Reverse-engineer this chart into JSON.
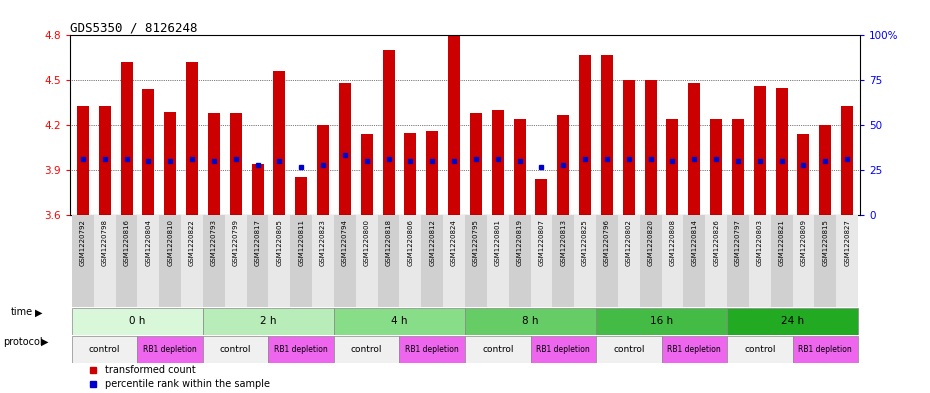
{
  "title": "GDS5350 / 8126248",
  "samples": [
    "GSM1220792",
    "GSM1220798",
    "GSM1220816",
    "GSM1220804",
    "GSM1220810",
    "GSM1220822",
    "GSM1220793",
    "GSM1220799",
    "GSM1220817",
    "GSM1220805",
    "GSM1220811",
    "GSM1220823",
    "GSM1220794",
    "GSM1220800",
    "GSM1220818",
    "GSM1220806",
    "GSM1220812",
    "GSM1220824",
    "GSM1220795",
    "GSM1220801",
    "GSM1220819",
    "GSM1220807",
    "GSM1220813",
    "GSM1220825",
    "GSM1220796",
    "GSM1220802",
    "GSM1220820",
    "GSM1220808",
    "GSM1220814",
    "GSM1220826",
    "GSM1220797",
    "GSM1220803",
    "GSM1220821",
    "GSM1220809",
    "GSM1220815",
    "GSM1220827"
  ],
  "bar_values": [
    4.33,
    4.33,
    4.62,
    4.44,
    4.29,
    4.62,
    4.28,
    4.28,
    3.94,
    4.56,
    3.85,
    4.2,
    4.48,
    4.14,
    4.7,
    4.15,
    4.16,
    4.8,
    4.28,
    4.3,
    4.24,
    3.84,
    4.27,
    4.67,
    4.67,
    4.5,
    4.5,
    4.24,
    4.48,
    4.24,
    4.24,
    4.46,
    4.45,
    4.14,
    4.2,
    4.33
  ],
  "blue_values": [
    3.97,
    3.97,
    3.97,
    3.96,
    3.96,
    3.97,
    3.96,
    3.97,
    3.93,
    3.96,
    3.92,
    3.93,
    4.0,
    3.96,
    3.97,
    3.96,
    3.96,
    3.96,
    3.97,
    3.97,
    3.96,
    3.92,
    3.93,
    3.97,
    3.97,
    3.97,
    3.97,
    3.96,
    3.97,
    3.97,
    3.96,
    3.96,
    3.96,
    3.93,
    3.96,
    3.97
  ],
  "time_labels": [
    "0 h",
    "2 h",
    "4 h",
    "8 h",
    "16 h",
    "24 h"
  ],
  "time_colors": [
    "#d9f7d9",
    "#b8edba",
    "#88dd88",
    "#66cc66",
    "#44bb44",
    "#22aa22"
  ],
  "protocol_labels": [
    "control",
    "RB1 depletion"
  ],
  "ylim": [
    3.6,
    4.8
  ],
  "yticks_left": [
    3.6,
    3.9,
    4.2,
    4.5,
    4.8
  ],
  "yticks_right": [
    0,
    25,
    50,
    75,
    100
  ],
  "bar_color": "#cc0000",
  "blue_color": "#0000cc",
  "bg_color": "#ffffff"
}
